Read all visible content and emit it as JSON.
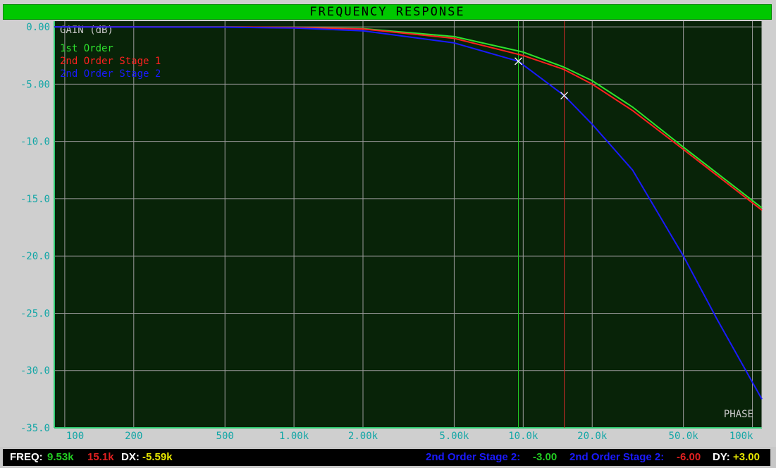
{
  "window": {
    "title": "FREQUENCY RESPONSE"
  },
  "chart_data": {
    "type": "line",
    "title": "FREQUENCY RESPONSE",
    "ylabel": "GAIN (dB)",
    "right_label": "PHASE",
    "x_scale": "log",
    "xlim": [
      90,
      110000
    ],
    "ylim": [
      -35,
      0.5
    ],
    "y_ticks": [
      0,
      -5,
      -10,
      -15,
      -20,
      -25,
      -30,
      -35
    ],
    "y_tick_labels": [
      "0.00",
      "-5.00",
      "-10.0",
      "-15.0",
      "-20.0",
      "-25.0",
      "-30.0",
      "-35.0"
    ],
    "x_ticks": [
      100,
      200,
      500,
      1000,
      2000,
      5000,
      10000,
      20000,
      50000,
      100000
    ],
    "x_tick_labels": [
      "100",
      "200",
      "500",
      "1.00k",
      "2.00k",
      "5.00k",
      "10.0k",
      "20.0k",
      "50.0k",
      "100k"
    ],
    "grid": true,
    "background": "#082308",
    "grid_color": "#9a9a9a",
    "axis_color": "#2ecc71",
    "series": [
      {
        "name": "1st Order",
        "color": "#2ee22e",
        "x": [
          90,
          200,
          500,
          1000,
          2000,
          5000,
          10000,
          15000,
          20000,
          30000,
          50000,
          110000
        ],
        "y": [
          0,
          0,
          -0.01,
          -0.04,
          -0.15,
          -0.85,
          -2.2,
          -3.5,
          -4.7,
          -7.0,
          -10.5,
          -15.8
        ]
      },
      {
        "name": "2nd Order Stage 1",
        "color": "#ff2020",
        "x": [
          90,
          200,
          500,
          1000,
          2000,
          5000,
          10000,
          15000,
          20000,
          30000,
          50000,
          110000
        ],
        "y": [
          0,
          0,
          -0.01,
          -0.05,
          -0.18,
          -1.0,
          -2.5,
          -3.7,
          -5.0,
          -7.3,
          -10.7,
          -16.0
        ]
      },
      {
        "name": "2nd Order Stage 2",
        "color": "#1a1aff",
        "x": [
          90,
          200,
          500,
          1000,
          2000,
          5000,
          9530,
          15100,
          20000,
          30000,
          50000,
          70000,
          110000
        ],
        "y": [
          0,
          -0.01,
          -0.02,
          -0.1,
          -0.35,
          -1.4,
          -3.0,
          -6.0,
          -8.5,
          -12.5,
          -20.0,
          -25.5,
          -32.5
        ]
      }
    ],
    "cursors": [
      {
        "freq": 9530,
        "color": "#22cc22",
        "marker_y": -3.0
      },
      {
        "freq": 15100,
        "color": "#cc2a2a",
        "marker_y": -6.0
      }
    ]
  },
  "status_bar": {
    "freq_label": "FREQ:",
    "freq_a": "9.53k",
    "freq_b": "15.1k",
    "dx_label": "DX:",
    "dx_value": "-5.59k",
    "trace_a_label": "2nd Order Stage 2:",
    "trace_a_value": "-3.00",
    "trace_b_label": "2nd Order Stage 2:",
    "trace_b_value": "-6.00",
    "dy_label": "DY:",
    "dy_value": "+3.00",
    "colors": {
      "label": "#ffffff",
      "freq_a": "#22cc22",
      "freq_b": "#e02020",
      "dx": "#e6e600",
      "trace": "#1a1aff",
      "dy": "#e6e600"
    }
  }
}
